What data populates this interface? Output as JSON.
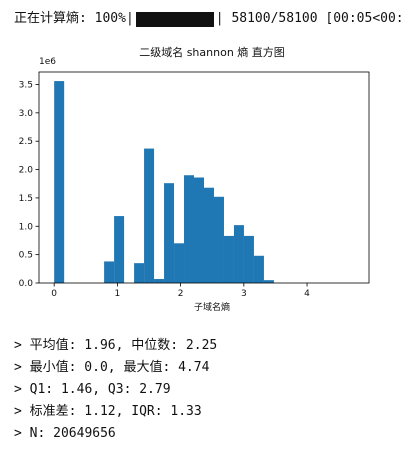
{
  "progress": {
    "prefix": "正在计算熵: 100%|",
    "suffix": "| 58100/58100 [00:05<00:"
  },
  "chart_data": {
    "type": "bar",
    "title": "二级域名 shannon 熵 直方图",
    "xlabel": "子域名熵",
    "ylabel": "",
    "y_multiplier_label": "1e6",
    "xlim": [
      -0.24,
      4.98
    ],
    "ylim": [
      0,
      3.72
    ],
    "xticks": [
      0,
      1,
      2,
      3,
      4
    ],
    "yticks": [
      0.0,
      0.5,
      1.0,
      1.5,
      2.0,
      2.5,
      3.0,
      3.5
    ],
    "bin_width": 0.158,
    "bins": [
      {
        "x0": 0.0,
        "value": 3.56
      },
      {
        "x0": 0.79,
        "value": 0.38
      },
      {
        "x0": 0.948,
        "value": 1.18
      },
      {
        "x0": 1.264,
        "value": 0.35
      },
      {
        "x0": 1.422,
        "value": 2.37
      },
      {
        "x0": 1.58,
        "value": 0.07
      },
      {
        "x0": 1.738,
        "value": 1.76
      },
      {
        "x0": 1.896,
        "value": 0.7
      },
      {
        "x0": 2.054,
        "value": 1.9
      },
      {
        "x0": 2.212,
        "value": 1.86
      },
      {
        "x0": 2.37,
        "value": 1.68
      },
      {
        "x0": 2.528,
        "value": 1.52
      },
      {
        "x0": 2.686,
        "value": 0.83
      },
      {
        "x0": 2.844,
        "value": 1.02
      },
      {
        "x0": 3.002,
        "value": 0.83
      },
      {
        "x0": 3.16,
        "value": 0.48
      },
      {
        "x0": 3.318,
        "value": 0.05
      }
    ],
    "bar_color": "#1f77b4"
  },
  "stats": [
    "> 平均值: 1.96, 中位数: 2.25",
    "> 最小值: 0.0, 最大值: 4.74",
    "> Q1: 1.46, Q3: 2.79",
    "> 标准差: 1.12, IQR: 1.33",
    "> N: 20649656"
  ]
}
